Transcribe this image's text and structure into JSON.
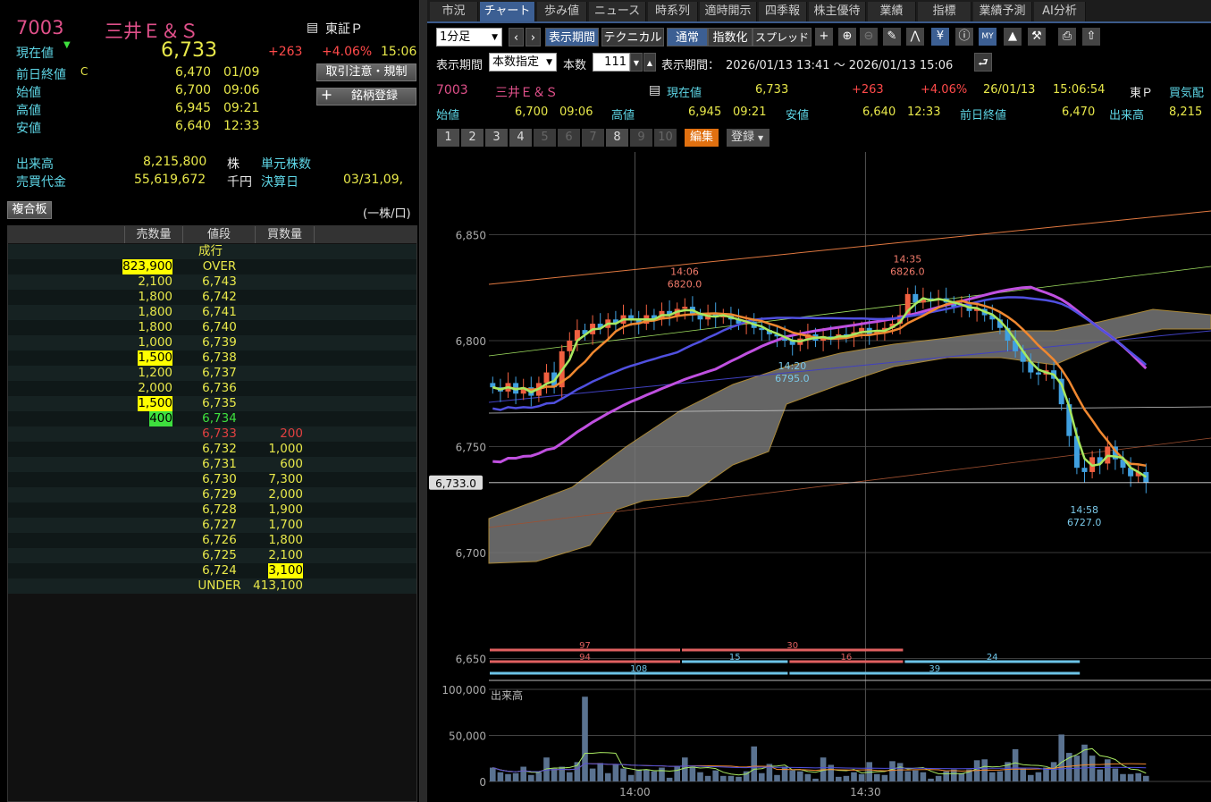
{
  "stock": {
    "code": "7003",
    "name": "三井Ｅ＆Ｓ",
    "market": "東証Ｐ",
    "current_label": "現在値",
    "current_price": "6,733",
    "change": "+263",
    "change_pct": "+4.06%",
    "time": "15:06",
    "prev_close_label": "前日終値",
    "prev_close_flag": "C",
    "prev_close": "6,470",
    "prev_close_date": "01/09",
    "open_label": "始値",
    "open": "6,700",
    "open_time": "09:06",
    "high_label": "高値",
    "high": "6,945",
    "high_time": "09:21",
    "low_label": "安値",
    "low": "6,640",
    "low_time": "12:33",
    "volume_label": "出来高",
    "volume": "8,215,800",
    "volume_unit": "株",
    "unit_shares_label": "単元株数",
    "turnover_label": "売買代金",
    "turnover": "55,619,672",
    "turnover_unit": "千円",
    "fiscal_label": "決算日",
    "fiscal": "03/31,09,",
    "caution_button": "取引注意・規制",
    "register_button": "銘柄登録",
    "composite_button": "複合板",
    "per_unit": "(一株/口)"
  },
  "order_book": {
    "headers": [
      "売数量",
      "値段",
      "買数量"
    ],
    "market_order": "成行",
    "rows": [
      {
        "sell": "823,900",
        "price": "OVER",
        "buy": "",
        "sell_hl": "yellow"
      },
      {
        "sell": "2,100",
        "price": "6,743",
        "buy": ""
      },
      {
        "sell": "1,800",
        "price": "6,742",
        "buy": ""
      },
      {
        "sell": "1,800",
        "price": "6,741",
        "buy": ""
      },
      {
        "sell": "1,800",
        "price": "6,740",
        "buy": ""
      },
      {
        "sell": "1,000",
        "price": "6,739",
        "buy": ""
      },
      {
        "sell": "1,500",
        "price": "6,738",
        "buy": "",
        "sell_hl": "yellow"
      },
      {
        "sell": "1,200",
        "price": "6,737",
        "buy": ""
      },
      {
        "sell": "2,000",
        "price": "6,736",
        "buy": ""
      },
      {
        "sell": "1,500",
        "price": "6,735",
        "buy": "",
        "sell_hl": "yellow"
      },
      {
        "sell": "400",
        "price": "6,734",
        "buy": "",
        "sell_hl": "green",
        "price_color": "#3ee03e"
      },
      {
        "sell": "",
        "price": "6,733",
        "buy": "200",
        "price_color": "#e04040",
        "buy_color": "#e04040"
      },
      {
        "sell": "",
        "price": "6,732",
        "buy": "1,000"
      },
      {
        "sell": "",
        "price": "6,731",
        "buy": "600"
      },
      {
        "sell": "",
        "price": "6,730",
        "buy": "7,300"
      },
      {
        "sell": "",
        "price": "6,729",
        "buy": "2,000"
      },
      {
        "sell": "",
        "price": "6,728",
        "buy": "1,900"
      },
      {
        "sell": "",
        "price": "6,727",
        "buy": "1,700"
      },
      {
        "sell": "",
        "price": "6,726",
        "buy": "1,800"
      },
      {
        "sell": "",
        "price": "6,725",
        "buy": "2,100"
      },
      {
        "sell": "",
        "price": "6,724",
        "buy": "3,100",
        "buy_hl": "yellow"
      },
      {
        "sell": "",
        "price": "UNDER",
        "buy": "413,100"
      }
    ]
  },
  "tabs": [
    "市況",
    "チャート",
    "歩み値",
    "ニュース",
    "時系列",
    "適時開示",
    "四季報",
    "株主優待",
    "業績",
    "指標",
    "業績予測",
    "AI分析"
  ],
  "active_tab": "チャート",
  "toolbar": {
    "interval": "1分足",
    "period_button": "表示期間",
    "technical_button": "テクニカル",
    "normal_button": "通常",
    "index_button": "指数化",
    "spread_button": "スプレッド",
    "icons": [
      "crosshair-icon",
      "zoom-in-icon",
      "zoom-out-icon",
      "pencil-icon",
      "trend-icon",
      "yen-icon",
      "info-icon",
      "my-indicator-icon",
      "area-chart-icon",
      "wrench-icon",
      "print-icon",
      "export-icon"
    ],
    "period_label": "表示期間",
    "period_mode": "本数指定",
    "count_label": "本数",
    "count": "111",
    "range_label": "表示期間：",
    "range": "2026/01/13 13:41 ～ 2026/01/13 15:06"
  },
  "quote_bar": {
    "code": "7003",
    "name": "三井Ｅ＆Ｓ",
    "current_label": "現在値",
    "current": "6,733",
    "change": "+263",
    "change_pct": "+4.06%",
    "date": "26/01/13",
    "time": "15:06:54",
    "market": "東Ｐ",
    "mood_label": "買気配",
    "open_label": "始値",
    "open": "6,700",
    "open_time": "09:06",
    "high_label": "高値",
    "high": "6,945",
    "high_time": "09:21",
    "low_label": "安値",
    "low": "6,640",
    "low_time": "12:33",
    "prev_label": "前日終値",
    "prev": "6,470",
    "volume_label": "出来高",
    "volume": "8,215"
  },
  "pages": {
    "buttons": [
      "1",
      "2",
      "3",
      "4",
      "5",
      "6",
      "7",
      "8",
      "9",
      "10"
    ],
    "disabled": [
      "5",
      "6",
      "7",
      "9",
      "10"
    ],
    "edit": "編集",
    "register": "登録"
  },
  "chart_data": {
    "type": "candlestick",
    "start_time": "13:41",
    "interval_minutes": 1,
    "ylim": [
      6630,
      6880
    ],
    "yticks": [
      "6,850",
      "6,800",
      "6,750",
      "6,700",
      "6,650"
    ],
    "ytick_values": [
      6850,
      6800,
      6750,
      6700,
      6650
    ],
    "xticks": [
      "14:00",
      "14:30"
    ],
    "current_price_label": "6,733.0",
    "current_price": 6733,
    "close": [
      6778,
      6776,
      6780,
      6775,
      6778,
      6774,
      6780,
      6785,
      6778,
      6795,
      6800,
      6805,
      6803,
      6808,
      6806,
      6810,
      6808,
      6812,
      6810,
      6808,
      6812,
      6810,
      6814,
      6812,
      6815,
      6816,
      6812,
      6810,
      6813,
      6811,
      6812,
      6810,
      6808,
      6809,
      6806,
      6805,
      6803,
      6802,
      6800,
      6798,
      6801,
      6803,
      6800,
      6802,
      6801,
      6803,
      6802,
      6804,
      6806,
      6803,
      6805,
      6806,
      6808,
      6812,
      6822,
      6818,
      6820,
      6819,
      6820,
      6818,
      6816,
      6817,
      6814,
      6815,
      6812,
      6810,
      6806,
      6800,
      6795,
      6790,
      6785,
      6784,
      6786,
      6782,
      6770,
      6755,
      6740,
      6738,
      6745,
      6742,
      6750,
      6744,
      6740,
      6736,
      6738,
      6733
    ],
    "annotations": [
      {
        "time": "14:06",
        "price": "6820.0",
        "kind": "high"
      },
      {
        "time": "14:35",
        "price": "6826.0",
        "kind": "high"
      },
      {
        "time": "14:20",
        "price": "6795.0",
        "kind": "low"
      },
      {
        "time": "14:58",
        "price": "6727.0",
        "kind": "low"
      }
    ],
    "zigzag": [
      {
        "row": 0,
        "from": "13:41",
        "to": "14:06",
        "label": "97",
        "color": "#e06060"
      },
      {
        "row": 0,
        "from": "14:06",
        "to": "14:35",
        "label": "30",
        "color": "#e06060"
      },
      {
        "row": 1,
        "from": "13:41",
        "to": "14:06",
        "label": "94",
        "color": "#e06060"
      },
      {
        "row": 1,
        "from": "14:06",
        "to": "14:20",
        "label": "15",
        "color": "#6cc4e8"
      },
      {
        "row": 1,
        "from": "14:20",
        "to": "14:35",
        "label": "16",
        "color": "#e06060"
      },
      {
        "row": 1,
        "from": "14:35",
        "to": "14:58",
        "label": "24",
        "color": "#6cc4e8"
      },
      {
        "row": 2,
        "from": "13:41",
        "to": "14:20",
        "label": "108",
        "color": "#6cc4e8"
      },
      {
        "row": 2,
        "from": "14:20",
        "to": "14:58",
        "label": "39",
        "color": "#6cc4e8"
      }
    ],
    "volume": {
      "label": "出来高",
      "yticks": [
        "100,000",
        "50,000",
        "0"
      ],
      "ylim": [
        0,
        100000
      ],
      "values": [
        15000,
        10000,
        8000,
        9000,
        16000,
        7000,
        10000,
        26000,
        14000,
        16000,
        10000,
        21000,
        92000,
        14000,
        20000,
        9000,
        18000,
        14000,
        7000,
        13000,
        13000,
        11000,
        15000,
        4000,
        17000,
        26000,
        16000,
        10000,
        6000,
        12000,
        6000,
        6000,
        5000,
        11000,
        38000,
        9000,
        19000,
        7000,
        16000,
        12000,
        11000,
        8000,
        3000,
        26000,
        18000,
        5000,
        6000,
        10000,
        8000,
        21000,
        8000,
        7000,
        22000,
        20000,
        11000,
        12000,
        10000,
        3000,
        6000,
        11000,
        13000,
        9000,
        13000,
        23000,
        24000,
        10000,
        11000,
        21000,
        35000,
        14000,
        7000,
        10000,
        15000,
        21000,
        51000,
        31000,
        28000,
        40000,
        28000,
        13000,
        24000,
        14000,
        8000,
        8000,
        9000,
        6000
      ]
    },
    "colors": {
      "up": "#f06040",
      "down": "#40a0e0",
      "ma_short": "#a8e860",
      "ma_mid": "#f08830",
      "ma_long": "#5050e0",
      "ma_longer": "#c050e0",
      "cloud": "#777777"
    }
  }
}
